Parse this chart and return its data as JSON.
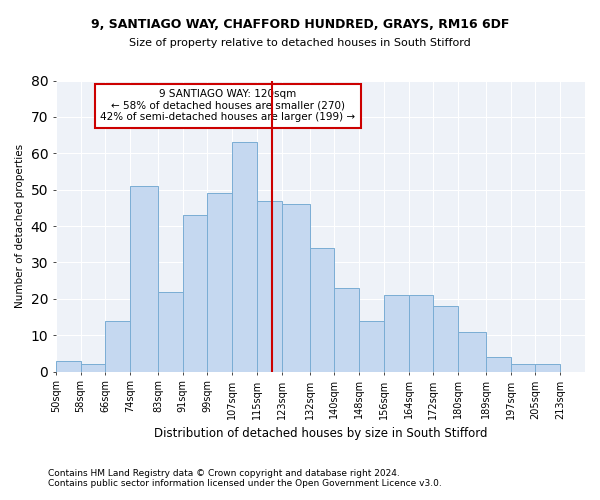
{
  "title": "9, SANTIAGO WAY, CHAFFORD HUNDRED, GRAYS, RM16 6DF",
  "subtitle": "Size of property relative to detached houses in South Stifford",
  "xlabel": "Distribution of detached houses by size in South Stifford",
  "ylabel": "Number of detached properties",
  "footnote1": "Contains HM Land Registry data © Crown copyright and database right 2024.",
  "footnote2": "Contains public sector information licensed under the Open Government Licence v3.0.",
  "bin_labels": [
    "50sqm",
    "58sqm",
    "66sqm",
    "74sqm",
    "83sqm",
    "91sqm",
    "99sqm",
    "107sqm",
    "115sqm",
    "123sqm",
    "132sqm",
    "140sqm",
    "148sqm",
    "156sqm",
    "164sqm",
    "172sqm",
    "180sqm",
    "189sqm",
    "197sqm",
    "205sqm",
    "213sqm"
  ],
  "bar_heights": [
    3,
    2,
    14,
    51,
    22,
    43,
    49,
    63,
    47,
    46,
    34,
    23,
    14,
    21,
    21,
    18,
    11,
    4,
    2,
    2,
    0
  ],
  "bin_edges": [
    50,
    58,
    66,
    74,
    83,
    91,
    99,
    107,
    115,
    123,
    132,
    140,
    148,
    156,
    164,
    172,
    180,
    189,
    197,
    205,
    213,
    221
  ],
  "vline_x": 120,
  "annotation_title": "9 SANTIAGO WAY: 120sqm",
  "annotation_line1": "← 58% of detached houses are smaller (270)",
  "annotation_line2": "42% of semi-detached houses are larger (199) →",
  "bar_color": "#c5d8f0",
  "bar_edge_color": "#7aadd4",
  "vline_color": "#cc0000",
  "annotation_box_color": "#cc0000",
  "background_color": "#eef2f8",
  "ylim": [
    0,
    80
  ],
  "yticks": [
    0,
    10,
    20,
    30,
    40,
    50,
    60,
    70,
    80
  ]
}
